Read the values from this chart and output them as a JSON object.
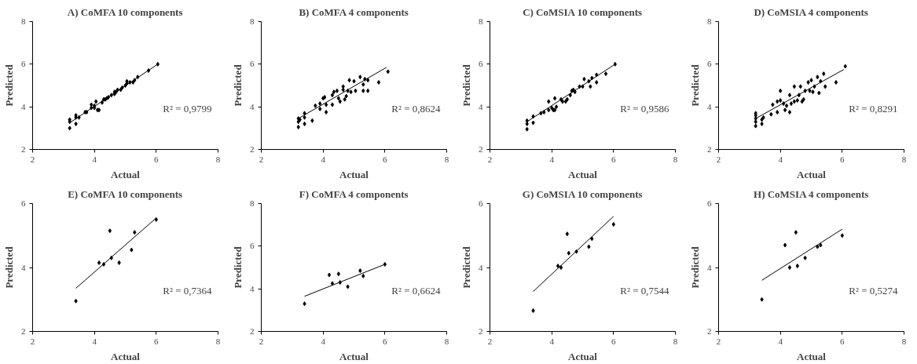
{
  "chart_data": [
    {
      "type": "scatter",
      "title": "A) CoMFA 10 components",
      "xlabel": "Actual",
      "ylabel": "Predicted",
      "xlim": [
        2,
        8
      ],
      "ylim": [
        2,
        8
      ],
      "xticks": [
        2,
        4,
        6,
        8
      ],
      "yticks": [
        2,
        4,
        6,
        8
      ],
      "grid": false,
      "marker": "diamond",
      "annotations": [
        "R² = 0,9799"
      ],
      "series": [
        {
          "color": "#000000",
          "x": [
            3.2,
            3.2,
            3.2,
            3.4,
            3.4,
            3.4,
            3.5,
            3.7,
            3.75,
            3.9,
            3.9,
            4.0,
            4.0,
            4.05,
            4.1,
            4.15,
            4.25,
            4.3,
            4.35,
            4.4,
            4.45,
            4.55,
            4.65,
            4.65,
            4.7,
            4.75,
            4.85,
            4.9,
            5.0,
            5.05,
            5.05,
            5.15,
            5.25,
            5.3,
            5.4,
            5.75,
            6.05
          ],
          "values": [
            3.0,
            3.3,
            3.4,
            3.2,
            3.5,
            3.6,
            3.5,
            3.75,
            3.75,
            3.95,
            4.1,
            4.05,
            3.95,
            4.25,
            3.85,
            3.85,
            4.2,
            4.35,
            4.35,
            4.4,
            4.45,
            4.55,
            4.6,
            4.7,
            4.7,
            4.8,
            4.8,
            4.9,
            5.0,
            5.1,
            5.2,
            5.15,
            5.15,
            5.25,
            5.4,
            5.7,
            6.0
          ]
        },
        {
          "type": "line",
          "marker": "none",
          "color": "#000000",
          "x": [
            3.2,
            6.05
          ],
          "values": [
            3.25,
            6.0
          ]
        }
      ]
    },
    {
      "type": "scatter",
      "title": "B) CoMFA 4 components",
      "xlabel": "Actual",
      "ylabel": "Predicted",
      "xlim": [
        2,
        8
      ],
      "ylim": [
        2,
        8
      ],
      "xticks": [
        2,
        4,
        6,
        8
      ],
      "yticks": [
        2,
        4,
        6,
        8
      ],
      "grid": false,
      "marker": "diamond",
      "annotations": [
        "R² = 0,8624"
      ],
      "series": [
        {
          "color": "#000000",
          "x": [
            3.2,
            3.2,
            3.2,
            3.25,
            3.4,
            3.4,
            3.4,
            3.65,
            3.75,
            3.9,
            3.9,
            4.0,
            4.05,
            4.1,
            4.1,
            4.3,
            4.3,
            4.35,
            4.45,
            4.5,
            4.55,
            4.65,
            4.65,
            4.7,
            4.75,
            4.8,
            4.85,
            4.9,
            5.0,
            5.05,
            5.2,
            5.3,
            5.3,
            5.35,
            5.45,
            5.45,
            5.8,
            6.1
          ],
          "values": [
            3.05,
            3.3,
            3.45,
            3.4,
            3.2,
            3.5,
            3.7,
            3.35,
            4.05,
            3.9,
            4.15,
            4.4,
            4.45,
            3.75,
            4.1,
            4.1,
            4.55,
            4.7,
            4.75,
            4.4,
            4.25,
            4.95,
            4.8,
            4.35,
            4.5,
            4.75,
            5.25,
            4.7,
            5.2,
            4.75,
            5.4,
            4.75,
            5.05,
            5.3,
            4.75,
            5.25,
            5.15,
            5.65
          ]
        },
        {
          "type": "line",
          "marker": "none",
          "color": "#000000",
          "x": [
            3.2,
            6.05
          ],
          "values": [
            3.45,
            5.85
          ]
        }
      ]
    },
    {
      "type": "scatter",
      "title": "C) CoMSIA 10 components",
      "xlabel": "Actual",
      "ylabel": "Predicted",
      "xlim": [
        2,
        8
      ],
      "ylim": [
        2,
        8
      ],
      "xticks": [
        2,
        4,
        6,
        8
      ],
      "yticks": [
        2,
        4,
        6,
        8
      ],
      "grid": false,
      "marker": "diamond",
      "annotations": [
        "R² = 0,9586"
      ],
      "series": [
        {
          "color": "#000000",
          "x": [
            3.2,
            3.2,
            3.2,
            3.4,
            3.4,
            3.65,
            3.75,
            3.9,
            3.9,
            4.0,
            4.05,
            4.1,
            4.1,
            4.15,
            4.3,
            4.35,
            4.45,
            4.5,
            4.6,
            4.65,
            4.7,
            4.75,
            4.9,
            5.0,
            5.05,
            5.2,
            5.25,
            5.3,
            5.45,
            5.45,
            5.75,
            6.05
          ],
          "values": [
            2.95,
            3.2,
            3.35,
            3.25,
            3.55,
            3.7,
            3.75,
            3.85,
            4.25,
            3.95,
            3.85,
            4.4,
            3.85,
            4.0,
            4.35,
            4.25,
            4.25,
            4.35,
            4.55,
            4.75,
            4.8,
            4.7,
            4.95,
            4.95,
            5.3,
            5.2,
            4.95,
            5.35,
            5.15,
            5.5,
            5.55,
            6.0
          ]
        },
        {
          "type": "line",
          "marker": "none",
          "color": "#000000",
          "x": [
            3.2,
            6.05
          ],
          "values": [
            3.3,
            6.0
          ]
        }
      ]
    },
    {
      "type": "scatter",
      "title": "D) CoMSIA 4 components",
      "xlabel": "Actual",
      "ylabel": "Predicted",
      "xlim": [
        2,
        8
      ],
      "ylim": [
        2,
        8
      ],
      "xticks": [
        2,
        4,
        6,
        8
      ],
      "yticks": [
        2,
        4,
        6,
        8
      ],
      "grid": false,
      "marker": "diamond",
      "annotations": [
        "R² = 0,8291"
      ],
      "series": [
        {
          "color": "#000000",
          "x": [
            3.2,
            3.2,
            3.2,
            3.2,
            3.2,
            3.4,
            3.4,
            3.45,
            3.7,
            3.75,
            3.9,
            3.9,
            4.0,
            4.0,
            4.1,
            4.15,
            4.2,
            4.3,
            4.3,
            4.35,
            4.45,
            4.45,
            4.55,
            4.6,
            4.65,
            4.7,
            4.75,
            4.8,
            4.9,
            4.95,
            5.0,
            5.05,
            5.1,
            5.2,
            5.25,
            5.3,
            5.4,
            5.45,
            5.8,
            6.1
          ],
          "values": [
            3.1,
            3.3,
            3.45,
            3.6,
            3.7,
            3.2,
            3.4,
            3.5,
            3.65,
            4.1,
            3.75,
            4.25,
            4.75,
            4.3,
            4.15,
            3.85,
            4.05,
            4.55,
            3.75,
            4.15,
            4.25,
            4.95,
            4.3,
            4.55,
            4.95,
            4.25,
            4.35,
            4.75,
            5.15,
            4.75,
            5.25,
            4.7,
            4.95,
            5.4,
            4.65,
            5.2,
            5.55,
            4.95,
            5.15,
            5.9
          ]
        },
        {
          "type": "line",
          "marker": "none",
          "color": "#000000",
          "x": [
            3.2,
            6.05
          ],
          "values": [
            3.45,
            5.75
          ]
        }
      ]
    },
    {
      "type": "scatter",
      "title": "E) CoMFA 10 components",
      "xlabel": "Actual",
      "ylabel": "Predicted",
      "xlim": [
        2,
        8
      ],
      "ylim": [
        2,
        6
      ],
      "xticks": [
        2,
        4,
        6,
        8
      ],
      "yticks": [
        2,
        4,
        6
      ],
      "grid": false,
      "marker": "diamond",
      "annotations": [
        "R² = 0,7364"
      ],
      "series": [
        {
          "color": "#000000",
          "x": [
            3.4,
            4.15,
            4.3,
            4.5,
            4.55,
            4.8,
            5.2,
            5.3,
            6.0
          ],
          "values": [
            2.95,
            4.15,
            4.1,
            5.15,
            4.3,
            4.15,
            4.55,
            5.1,
            5.5
          ]
        },
        {
          "type": "line",
          "marker": "none",
          "color": "#000000",
          "x": [
            3.4,
            6.0
          ],
          "values": [
            3.35,
            5.55
          ]
        }
      ]
    },
    {
      "type": "scatter",
      "title": "F) CoMFA 4 components",
      "xlabel": "Actual",
      "ylabel": "Predicted",
      "xlim": [
        2,
        8
      ],
      "ylim": [
        2,
        8
      ],
      "xticks": [
        2,
        4,
        6,
        8
      ],
      "yticks": [
        2,
        4,
        6,
        8
      ],
      "grid": false,
      "marker": "diamond",
      "annotations": [
        "R² = 0,6624"
      ],
      "series": [
        {
          "color": "#000000",
          "x": [
            3.4,
            4.2,
            4.3,
            4.5,
            4.55,
            4.8,
            5.2,
            5.3,
            6.0
          ],
          "values": [
            3.3,
            4.65,
            4.25,
            4.7,
            4.3,
            4.1,
            4.85,
            4.6,
            5.15
          ]
        },
        {
          "type": "line",
          "marker": "none",
          "color": "#000000",
          "x": [
            3.4,
            6.0
          ],
          "values": [
            3.65,
            5.15
          ]
        }
      ]
    },
    {
      "type": "scatter",
      "title": "G) CoMSIA 10 components",
      "xlabel": "Actual",
      "ylabel": "Predicted",
      "xlim": [
        2,
        8
      ],
      "ylim": [
        2,
        6
      ],
      "xticks": [
        2,
        4,
        6,
        8
      ],
      "yticks": [
        2,
        4,
        6
      ],
      "grid": false,
      "marker": "diamond",
      "annotations": [
        "R² = 0,7544"
      ],
      "series": [
        {
          "color": "#000000",
          "x": [
            3.4,
            4.2,
            4.3,
            4.5,
            4.55,
            4.8,
            5.2,
            5.3,
            6.0
          ],
          "values": [
            2.65,
            4.05,
            4.0,
            5.05,
            4.45,
            4.5,
            4.65,
            4.9,
            5.35
          ]
        },
        {
          "type": "line",
          "marker": "none",
          "color": "#000000",
          "x": [
            3.4,
            6.0
          ],
          "values": [
            3.25,
            5.6
          ]
        }
      ]
    },
    {
      "type": "scatter",
      "title": "H) CoMSIA 4 components",
      "xlabel": "Actual",
      "ylabel": "Predicted",
      "xlim": [
        2,
        8
      ],
      "ylim": [
        2,
        6
      ],
      "xticks": [
        2,
        4,
        6,
        8
      ],
      "yticks": [
        2,
        4,
        6
      ],
      "grid": false,
      "marker": "diamond",
      "annotations": [
        "R² = 0,5274"
      ],
      "series": [
        {
          "color": "#000000",
          "x": [
            3.4,
            4.15,
            4.3,
            4.5,
            4.55,
            4.8,
            5.2,
            5.3,
            6.0
          ],
          "values": [
            3.0,
            4.7,
            4.0,
            5.1,
            4.05,
            4.3,
            4.65,
            4.7,
            5.0
          ]
        },
        {
          "type": "line",
          "marker": "none",
          "color": "#000000",
          "x": [
            3.4,
            6.0
          ],
          "values": [
            3.6,
            5.2
          ]
        }
      ]
    }
  ]
}
